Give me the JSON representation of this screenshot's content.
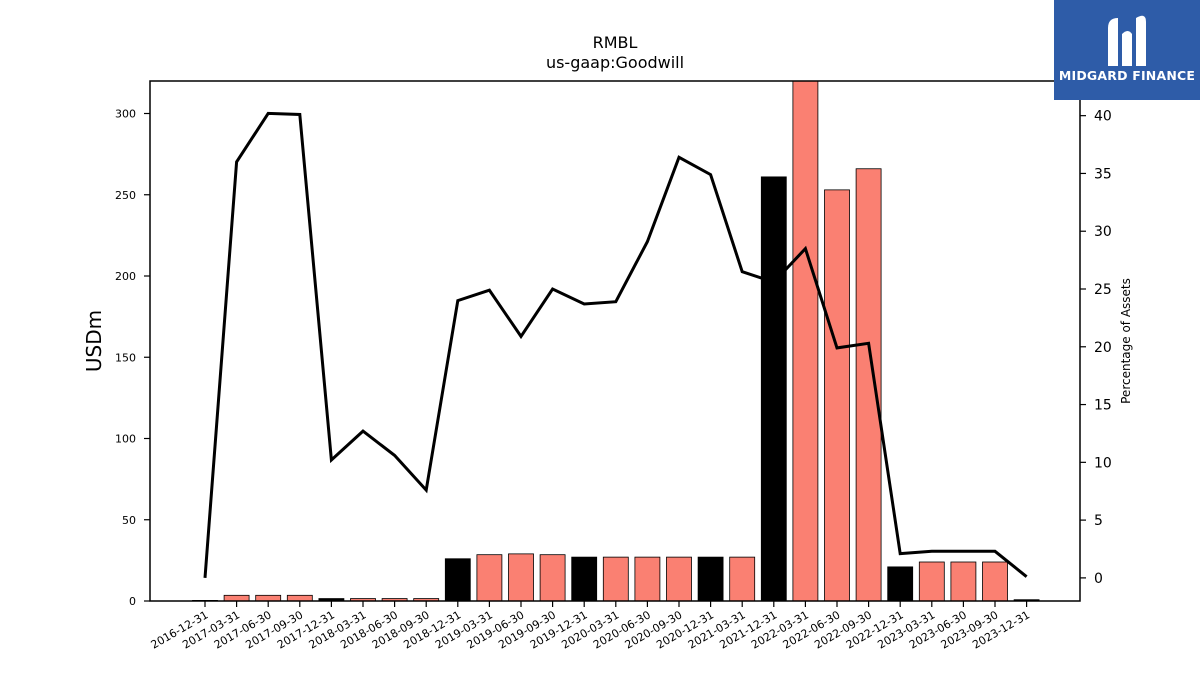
{
  "chart_data": {
    "type": "bar",
    "title": "RMBL",
    "subtitle": "us-gaap:Goodwill",
    "ylabel": "USDm",
    "y2label": "Percentage of Assets",
    "ylim": [
      0,
      320
    ],
    "y2lim": [
      -2,
      43
    ],
    "yticks": [
      0,
      50,
      100,
      150,
      200,
      250,
      300
    ],
    "y2ticks": [
      0,
      5,
      10,
      15,
      20,
      25,
      30,
      35,
      40
    ],
    "grid": false,
    "categories": [
      "2016-12-31",
      "2017-03-31",
      "2017-06-30",
      "2017-09-30",
      "2017-12-31",
      "2018-03-31",
      "2018-06-30",
      "2018-09-30",
      "2018-12-31",
      "2019-03-31",
      "2019-06-30",
      "2019-09-30",
      "2019-12-31",
      "2020-03-31",
      "2020-06-30",
      "2020-09-30",
      "2020-12-31",
      "2021-03-31",
      "2021-12-31",
      "2022-03-31",
      "2022-06-30",
      "2022-09-30",
      "2022-12-31",
      "2023-03-31",
      "2023-06-30",
      "2023-09-30",
      "2023-12-31"
    ],
    "series": [
      {
        "type": "bar",
        "axis": "left",
        "values": [
          0,
          3.5,
          3.5,
          3.5,
          1.5,
          1.5,
          1.5,
          1.5,
          26,
          28.5,
          29,
          28.5,
          27,
          27,
          27,
          27,
          27,
          27,
          261,
          320,
          253,
          266,
          21,
          24,
          24,
          24,
          0.8
        ],
        "colors": [
          "#fa8072",
          "#fa8072",
          "#fa8072",
          "#fa8072",
          "#000000",
          "#fa8072",
          "#fa8072",
          "#fa8072",
          "#000000",
          "#fa8072",
          "#fa8072",
          "#fa8072",
          "#000000",
          "#fa8072",
          "#fa8072",
          "#fa8072",
          "#000000",
          "#fa8072",
          "#000000",
          "#fa8072",
          "#fa8072",
          "#fa8072",
          "#000000",
          "#fa8072",
          "#fa8072",
          "#fa8072",
          "#000000"
        ]
      },
      {
        "type": "line",
        "axis": "right",
        "color": "#000000",
        "values": [
          0,
          36,
          40.2,
          40.1,
          10.2,
          12.7,
          10.6,
          7.6,
          24,
          24.9,
          20.9,
          25,
          23.7,
          23.9,
          29.1,
          36.4,
          34.9,
          26.5,
          25.6,
          28.5,
          19.9,
          20.3,
          2.1,
          2.3,
          2.3,
          2.3,
          0.1
        ]
      }
    ]
  },
  "logo": {
    "text": "MIDGARD FINANCE",
    "bg_color": "#2e5ca8"
  }
}
